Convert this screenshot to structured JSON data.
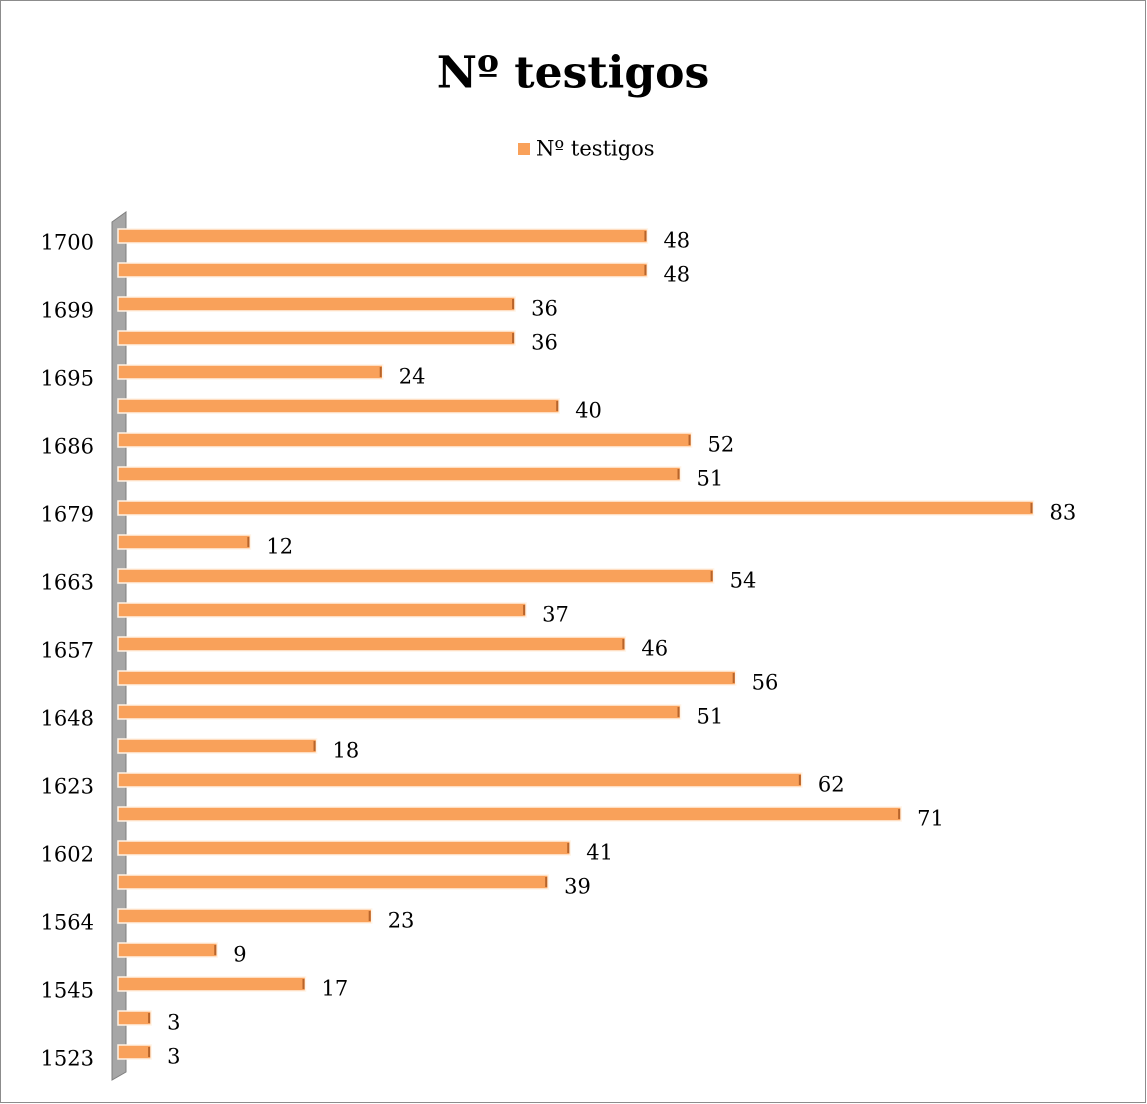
{
  "chart_data": {
    "type": "bar",
    "orientation": "horizontal",
    "title": "Nº testigos",
    "categories": [
      "1523",
      null,
      "1545",
      null,
      "1564",
      null,
      "1602",
      null,
      "1623",
      null,
      "1648",
      null,
      "1657",
      null,
      "1663",
      null,
      "1679",
      null,
      "1686",
      null,
      "1695",
      null,
      "1699",
      null,
      "1700"
    ],
    "series": [
      {
        "name": "Nº testigos",
        "color": "#f9a15a",
        "values": [
          3,
          3,
          17,
          9,
          23,
          39,
          41,
          71,
          62,
          18,
          51,
          56,
          46,
          37,
          54,
          12,
          83,
          51,
          52,
          40,
          24,
          36,
          36,
          48,
          48
        ]
      }
    ],
    "legend": "top"
  }
}
